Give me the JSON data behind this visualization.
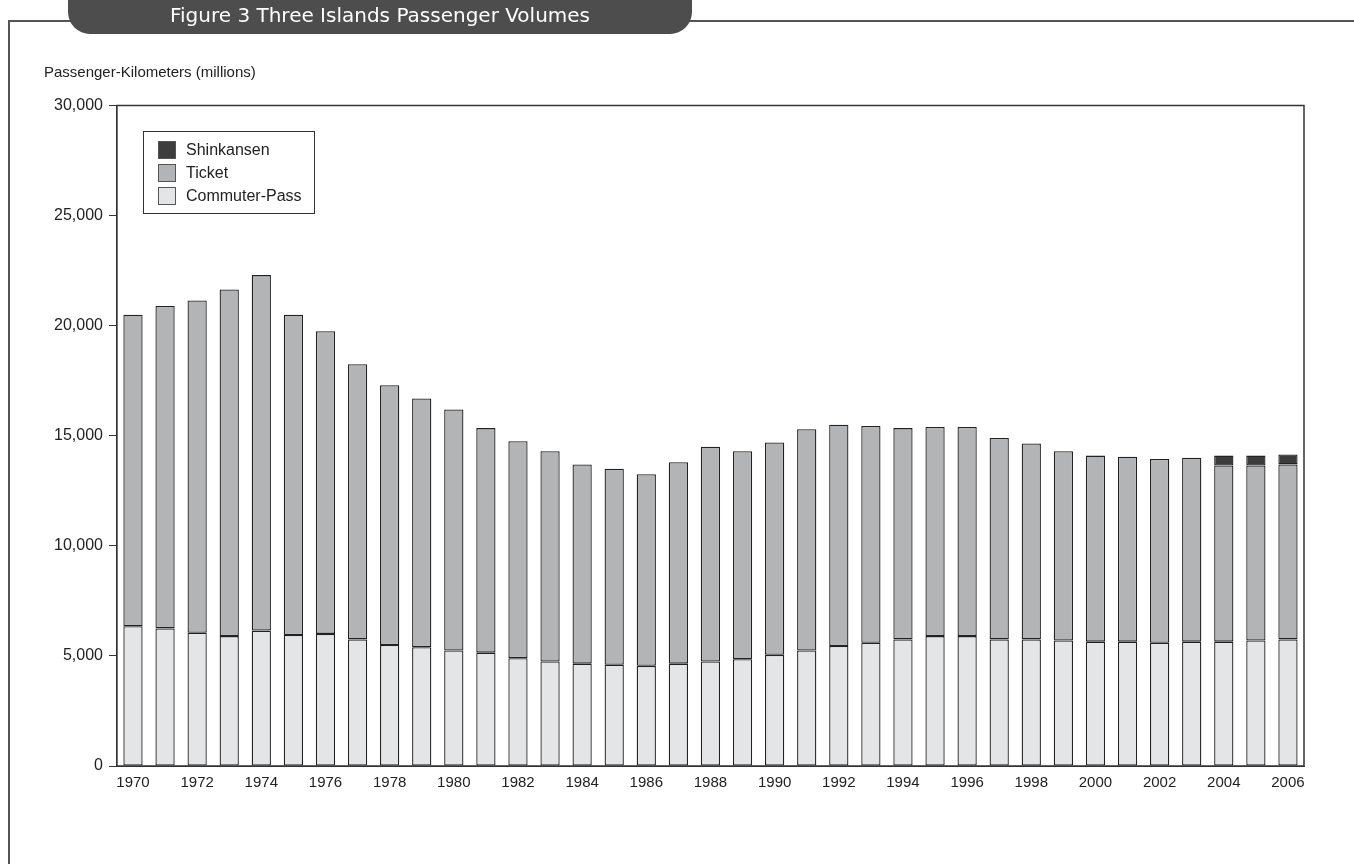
{
  "chart_data": {
    "type": "bar",
    "title": "Figure 3  Three Islands Passenger Volumes",
    "ylabel": "Passenger-Kilometers (millions)",
    "categories": [
      "1970",
      null,
      "1972",
      null,
      "1974",
      null,
      "1976",
      null,
      "1978",
      null,
      "1980",
      null,
      "1982",
      null,
      "1984",
      null,
      "1986",
      null,
      "1988",
      null,
      "1990",
      null,
      "1992",
      null,
      "1994",
      null,
      "1996",
      null,
      "1998",
      null,
      "2000",
      null,
      "2002",
      null,
      "2004",
      null,
      "2006"
    ],
    "stacked": true,
    "series": [
      {
        "name": "Commuter-Pass",
        "color": "#e4e5e6",
        "values": [
          6350,
          6250,
          6050,
          5900,
          6150,
          5950,
          6000,
          5750,
          5500,
          5400,
          5250,
          5150,
          4900,
          4750,
          4650,
          4600,
          4550,
          4650,
          4750,
          4850,
          5050,
          5250,
          5450,
          5600,
          5750,
          5900,
          5900,
          5750,
          5750,
          5700,
          5650,
          5650,
          5600,
          5650,
          5650,
          5700,
          5750
        ]
      },
      {
        "name": "Ticket",
        "color": "#b3b4b6",
        "values": [
          14150,
          14650,
          15100,
          15750,
          16150,
          14550,
          13750,
          12500,
          11800,
          11300,
          10950,
          10200,
          9850,
          9550,
          9050,
          8900,
          8700,
          9150,
          9750,
          9450,
          9650,
          10050,
          10050,
          9850,
          9600,
          9500,
          9500,
          9150,
          8900,
          8600,
          8450,
          8400,
          8350,
          8350,
          8000,
          7950,
          7950
        ]
      },
      {
        "name": "Shinkansen",
        "color": "#3d3d3d",
        "values": [
          null,
          null,
          null,
          null,
          null,
          null,
          null,
          null,
          null,
          null,
          null,
          null,
          null,
          null,
          null,
          null,
          null,
          null,
          null,
          null,
          null,
          null,
          null,
          null,
          null,
          null,
          null,
          null,
          null,
          null,
          null,
          null,
          null,
          null,
          450,
          450,
          450
        ]
      }
    ],
    "ylim": [
      0,
      30000
    ],
    "yticks": [
      0,
      {
        "value": 5000,
        "label": "5,000"
      },
      {
        "value": 10000,
        "label": "10,000"
      },
      {
        "value": 15000,
        "label": "15,000"
      },
      {
        "value": 20000,
        "label": "20,000"
      },
      {
        "value": 25000,
        "label": "25,000"
      },
      {
        "value": 30000,
        "label": "30,000"
      }
    ],
    "grid": false,
    "legend": "top left"
  }
}
